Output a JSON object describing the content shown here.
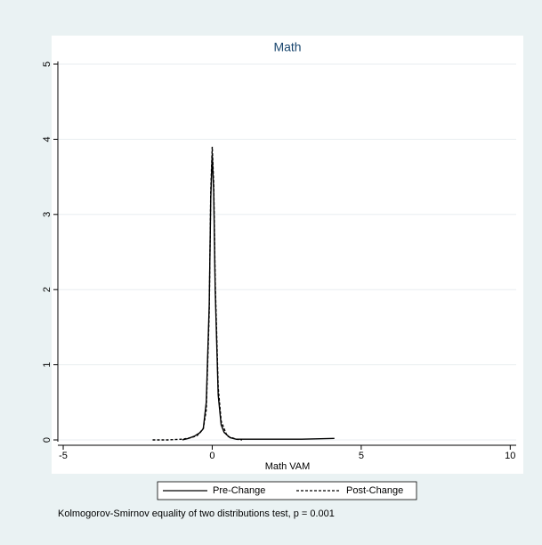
{
  "chart_data": {
    "type": "line",
    "title": "Math",
    "x_label": "Math VAM",
    "note": "Kolmogorov-Smirnov equality of two distributions test, p = 0.001",
    "xlim": [
      -5.18,
      10.2
    ],
    "xticks": [
      -5,
      0,
      5,
      10
    ],
    "ylim": [
      0,
      5
    ],
    "yticks": [
      0,
      1,
      2,
      3,
      4,
      5
    ],
    "grid": true,
    "legend": "bottom",
    "series": [
      {
        "name": "Pre-Change",
        "color": "#000000",
        "dash": "solid",
        "x": [
          -1.0,
          -0.8,
          -0.6,
          -0.4,
          -0.3,
          -0.2,
          -0.1,
          -0.05,
          0,
          0.05,
          0.1,
          0.2,
          0.3,
          0.4,
          0.6,
          0.8,
          1.0,
          2,
          3,
          4.1
        ],
        "values": [
          0,
          0.02,
          0.05,
          0.1,
          0.15,
          0.5,
          1.8,
          3.2,
          3.8,
          3.3,
          2.0,
          0.6,
          0.2,
          0.1,
          0.03,
          0.01,
          0.01,
          0.01,
          0.01,
          0.02
        ]
      },
      {
        "name": "Post-Change",
        "color": "#000000",
        "dash": "dashed",
        "x": [
          -2,
          -1.5,
          -1,
          -0.7,
          -0.5,
          -0.3,
          -0.2,
          -0.1,
          -0.05,
          0,
          0.05,
          0.1,
          0.2,
          0.3,
          0.5,
          0.8,
          1.0
        ],
        "values": [
          0,
          0,
          0.01,
          0.03,
          0.06,
          0.15,
          0.4,
          1.7,
          3.3,
          3.9,
          3.4,
          2.1,
          0.7,
          0.25,
          0.05,
          0.01,
          0
        ]
      }
    ]
  }
}
